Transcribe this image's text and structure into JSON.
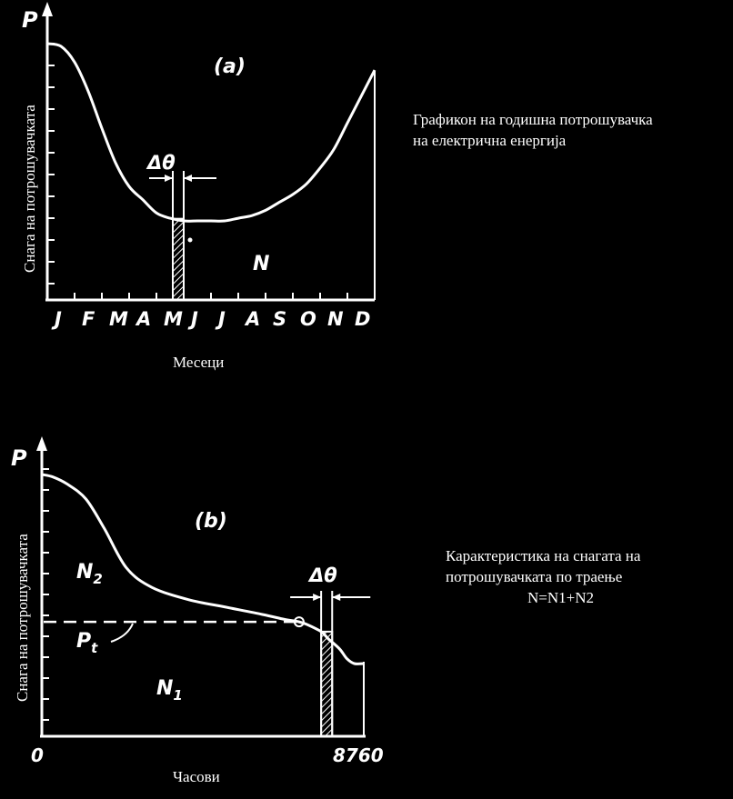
{
  "chart_data": [
    {
      "type": "line",
      "panel_label": "(a)",
      "caption": [
        "Графикон на годишна потрошувачка",
        "на електрична енергија"
      ],
      "ylabel": "Снага на потрошувачката",
      "y_axis_symbol": "P",
      "xlabel": "Месеци",
      "categories": [
        "J",
        "F",
        "M",
        "A",
        "M",
        "J",
        "J",
        "A",
        "S",
        "O",
        "N",
        "D"
      ],
      "x": [
        0,
        0.5,
        1,
        1.5,
        2,
        2.5,
        3,
        3.5,
        4,
        4.5,
        5,
        5.5,
        6,
        6.5,
        7,
        7.5,
        8,
        8.5,
        9,
        9.5,
        10,
        10.5,
        11,
        11.5,
        12
      ],
      "values": [
        1.0,
        0.99,
        0.93,
        0.82,
        0.68,
        0.55,
        0.46,
        0.41,
        0.36,
        0.34,
        0.33,
        0.33,
        0.33,
        0.33,
        0.34,
        0.35,
        0.37,
        0.4,
        0.43,
        0.47,
        0.53,
        0.6,
        0.7,
        0.8,
        0.9
      ],
      "strip_x": [
        4.6,
        5.0
      ],
      "delta_label": "Δθ",
      "area_label": "N",
      "grid": false
    },
    {
      "type": "area",
      "panel_label": "(b)",
      "caption": [
        "Карактеристика на снагата на",
        "потрошувачката по траење",
        "N=N1+N2"
      ],
      "ylabel": "Снага на потрошувачката",
      "y_axis_symbol": "P",
      "xlabel": "Часови",
      "x_tick_labels": [
        "0",
        "8760"
      ],
      "xlim": [
        0,
        8760
      ],
      "x": [
        0,
        300,
        700,
        1200,
        1700,
        2300,
        3000,
        4000,
        5000,
        6000,
        6600,
        7000,
        7200,
        7600,
        7800,
        8100,
        8300,
        8500,
        8760
      ],
      "values": [
        1.0,
        0.99,
        0.96,
        0.9,
        0.78,
        0.62,
        0.54,
        0.49,
        0.46,
        0.43,
        0.41,
        0.4,
        0.39,
        0.36,
        0.33,
        0.29,
        0.25,
        0.23,
        0.23
      ],
      "base_level": 0.4,
      "base_label": "P",
      "base_label_subscript": "t",
      "strip_x": [
        7600,
        7900
      ],
      "delta_label": "Δθ",
      "region_labels": {
        "N2": "N",
        "N2_sub": "2",
        "N1": "N",
        "N1_sub": "1"
      },
      "grid": false
    }
  ]
}
